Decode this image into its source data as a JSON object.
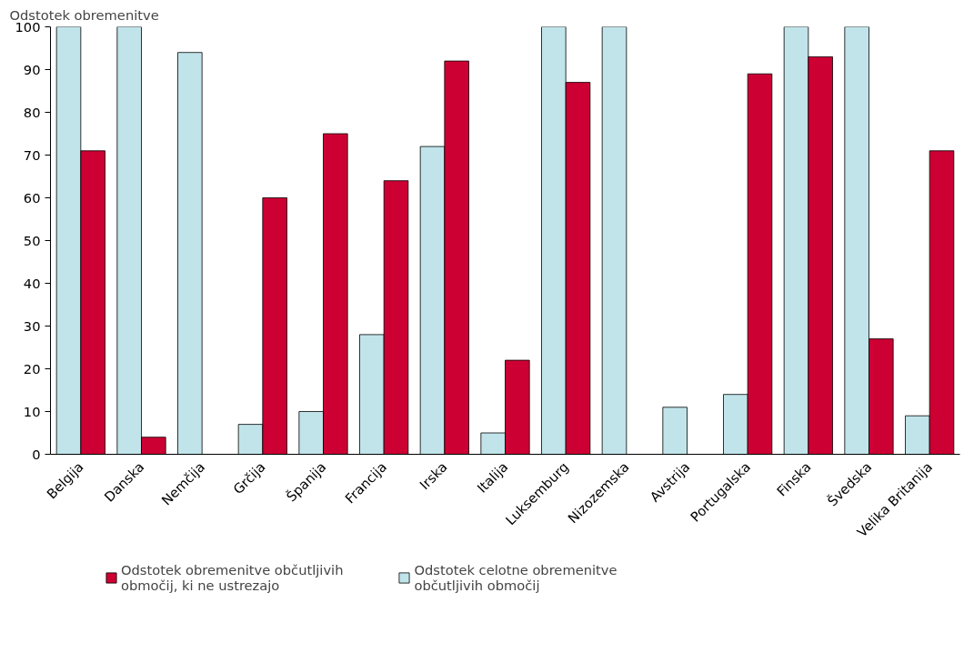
{
  "chart_data": {
    "type": "bar",
    "ylabel": "Odstotek obremenitve",
    "categories": [
      "Belgija",
      "Danska",
      "Nemčija",
      "Grčija",
      "Španija",
      "Francija",
      "Irska",
      "Italija",
      "Luksemburg",
      "Nizozemska",
      "Avstrija",
      "Portugalska",
      "Finska",
      "Švedska",
      "Velika Britanija"
    ],
    "series": [
      {
        "name": "Odstotek celotne obremenitve občutljivih območij",
        "color": "#c0e4ea",
        "values": [
          100,
          100,
          94,
          7,
          10,
          28,
          72,
          5,
          100,
          100,
          11,
          14,
          100,
          100,
          9
        ]
      },
      {
        "name": "Odstotek obremenitve občutljivih območij, ki ne ustrezajo",
        "color": "#cc0033",
        "values": [
          71,
          4,
          null,
          60,
          75,
          64,
          92,
          22,
          87,
          null,
          null,
          89,
          93,
          27,
          71
        ]
      }
    ],
    "ylim": [
      0,
      100
    ],
    "yticks": [
      0,
      10,
      20,
      30,
      40,
      50,
      60,
      70,
      80,
      90,
      100
    ],
    "grid": false,
    "legend": "bottom"
  }
}
